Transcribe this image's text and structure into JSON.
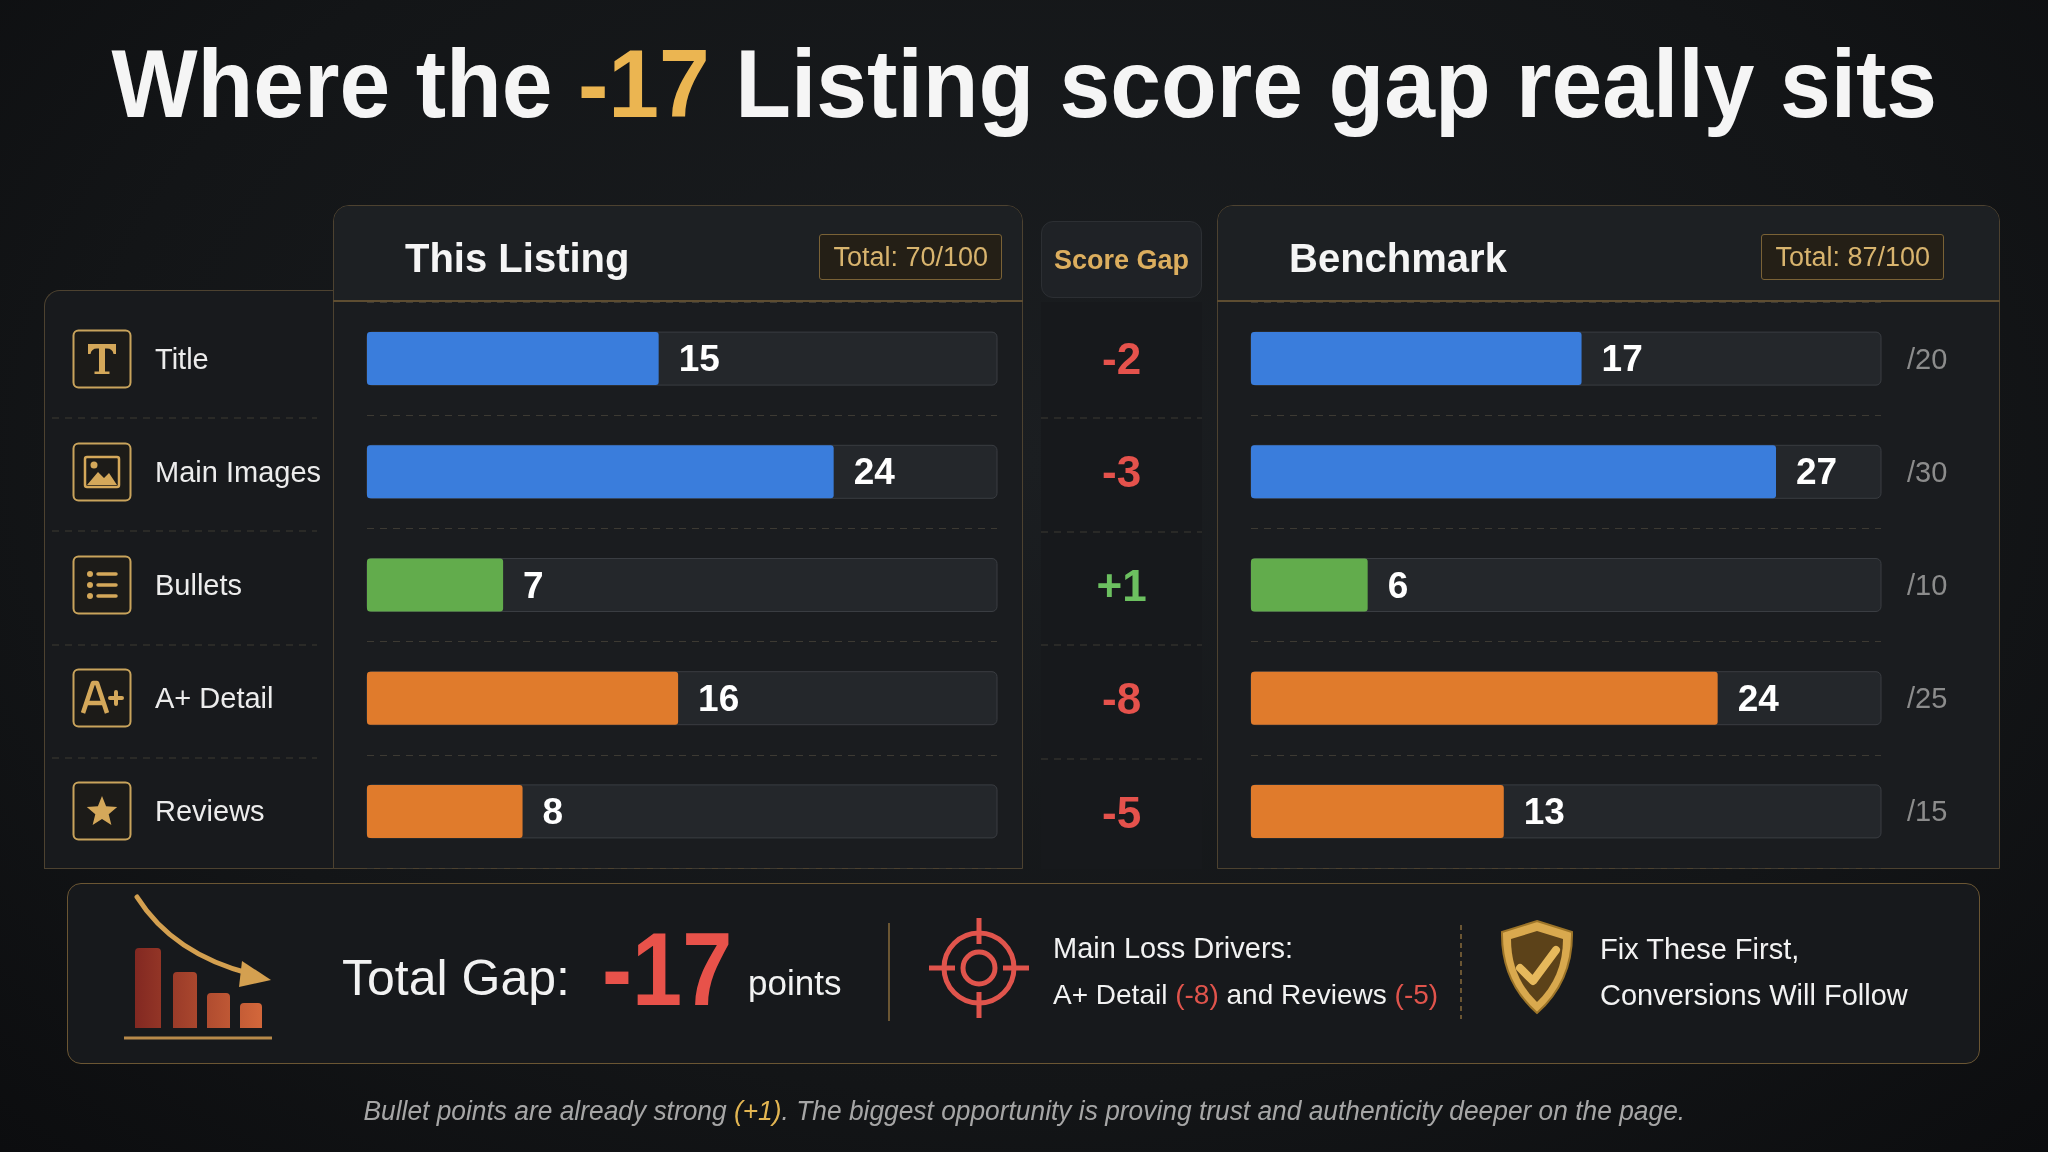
{
  "chart_data": [
    {
      "type": "other",
      "title": "Where the -17 Listing score gap really sits"
    },
    {
      "type": "bar",
      "orientation": "horizontal",
      "title": "This Listing",
      "subtitle": "Total: 70/100",
      "categories": [
        "Title",
        "Main Images",
        "Bullets",
        "A+ Detail",
        "Reviews"
      ],
      "values": [
        15,
        24,
        7,
        16,
        8
      ],
      "colors": [
        "#3a7ddc",
        "#3a7ddc",
        "#62ac4c",
        "#e07b2c",
        "#e07b2c"
      ],
      "data_labels": true,
      "grid": "y",
      "tick_labels": "y"
    },
    {
      "type": "other",
      "title": "Score Gap",
      "annotations": [
        "-2",
        "-3",
        "+1",
        "-8",
        "-5"
      ],
      "colors": [
        "#e5524c",
        "#e5524c",
        "#6cc060",
        "#e5524c",
        "#e5524c"
      ]
    },
    {
      "type": "bar",
      "orientation": "horizontal",
      "title": "Benchmark",
      "subtitle": "Total: 87/100",
      "categories": [
        null,
        null,
        null,
        null,
        null
      ],
      "values": [
        17,
        27,
        6,
        24,
        13
      ],
      "colors": [
        "#3a7ddc",
        "#3a7ddc",
        "#62ac4c",
        "#e07b2c",
        "#e07b2c"
      ],
      "data_labels": true,
      "grid": "y",
      "tick_labels": false,
      "annotations": [
        "/20",
        "/30",
        "/10",
        "/25",
        "/15"
      ]
    },
    {
      "type": "other",
      "annotations": [
        "Total Gap:",
        "-17",
        "points",
        "Main Loss Drivers:",
        "A+ Detail (-8) and Reviews (-5)",
        "Fix These First, Conversions Will Follow",
        "Bullet points are already strong (+1). The biggest opportunity is proving trust and authenticity deeper on the page."
      ]
    }
  ]
}
